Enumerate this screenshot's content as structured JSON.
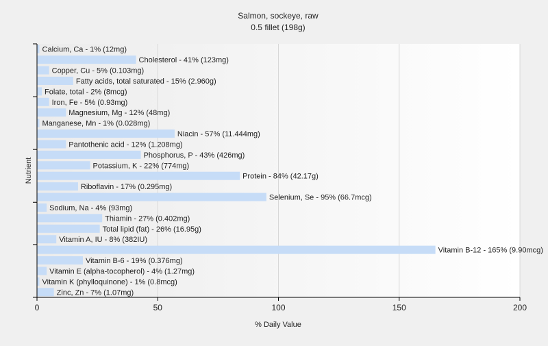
{
  "chart_data": {
    "type": "bar",
    "orientation": "horizontal",
    "title": "Salmon, sockeye, raw",
    "subtitle": "0.5 fillet (198g)",
    "xlabel": "% Daily Value",
    "ylabel": "Nutrient",
    "xlim": [
      0,
      200
    ],
    "xticks": [
      0,
      50,
      100,
      150,
      200
    ],
    "grid": true,
    "bar_color": "#c6dcf7",
    "categories": [
      "Calcium, Ca",
      "Cholesterol",
      "Copper, Cu",
      "Fatty acids, total saturated",
      "Folate, total",
      "Iron, Fe",
      "Magnesium, Mg",
      "Manganese, Mn",
      "Niacin",
      "Pantothenic acid",
      "Phosphorus, P",
      "Potassium, K",
      "Protein",
      "Riboflavin",
      "Selenium, Se",
      "Sodium, Na",
      "Thiamin",
      "Total lipid (fat)",
      "Vitamin A, IU",
      "Vitamin B-12",
      "Vitamin B-6",
      "Vitamin E (alpha-tocopherol)",
      "Vitamin K (phylloquinone)",
      "Zinc, Zn"
    ],
    "values": [
      1,
      41,
      5,
      15,
      2,
      5,
      12,
      1,
      57,
      12,
      43,
      22,
      84,
      17,
      95,
      4,
      27,
      26,
      8,
      165,
      19,
      4,
      1,
      7
    ],
    "labels": [
      "Calcium, Ca - 1% (12mg)",
      "Cholesterol - 41% (123mg)",
      "Copper, Cu - 5% (0.103mg)",
      "Fatty acids, total saturated - 15% (2.960g)",
      "Folate, total - 2% (8mcg)",
      "Iron, Fe - 5% (0.93mg)",
      "Magnesium, Mg - 12% (48mg)",
      "Manganese, Mn - 1% (0.028mg)",
      "Niacin - 57% (11.444mg)",
      "Pantothenic acid - 12% (1.208mg)",
      "Phosphorus, P - 43% (426mg)",
      "Potassium, K - 22% (774mg)",
      "Protein - 84% (42.17g)",
      "Riboflavin - 17% (0.295mg)",
      "Selenium, Se - 95% (66.7mcg)",
      "Sodium, Na - 4% (93mg)",
      "Thiamin - 27% (0.402mg)",
      "Total lipid (fat) - 26% (16.95g)",
      "Vitamin A, IU - 8% (382IU)",
      "Vitamin B-12 - 165% (9.90mcg)",
      "Vitamin B-6 - 19% (0.376mg)",
      "Vitamin E (alpha-tocopherol) - 4% (1.27mg)",
      "Vitamin K (phylloquinone) - 1% (0.8mcg)",
      "Zinc, Zn - 7% (1.07mg)"
    ]
  }
}
